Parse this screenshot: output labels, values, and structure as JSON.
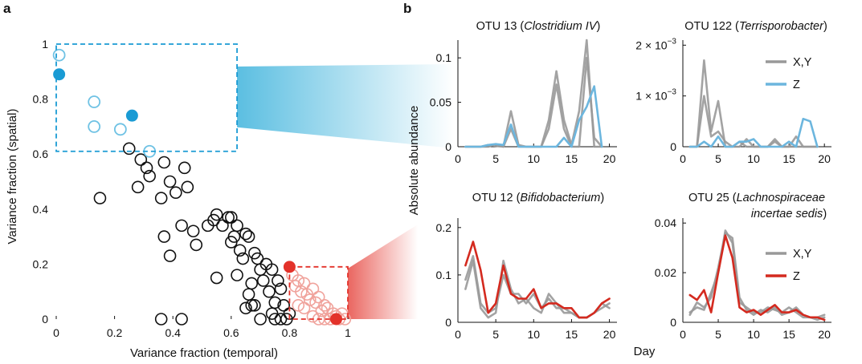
{
  "panel_labels": {
    "a": "a",
    "b": "b"
  },
  "colors": {
    "black": "#111111",
    "blue": "#1a9bd4",
    "blue_light": "#6fc2e4",
    "red": "#e3322a",
    "red_light": "#f0a39c",
    "gray": "#999999",
    "blue_line": "#6cb6de",
    "red_line": "#d42a1f"
  },
  "chart_data": [
    {
      "type": "scatter",
      "xlabel": "Variance fraction (temporal)",
      "ylabel": "Variance fraction (spatial)",
      "xlim": [
        0,
        1.0
      ],
      "ylim": [
        0,
        1.0
      ],
      "xticks": [
        "0",
        "0.2",
        "0.4",
        "0.6",
        "0.8",
        "1"
      ],
      "yticks": [
        "0",
        "0.2",
        "0.4",
        "0.6",
        "0.8",
        "1"
      ],
      "black_points": [
        [
          0.15,
          0.44
        ],
        [
          0.25,
          0.62
        ],
        [
          0.29,
          0.58
        ],
        [
          0.31,
          0.55
        ],
        [
          0.32,
          0.52
        ],
        [
          0.28,
          0.48
        ],
        [
          0.37,
          0.57
        ],
        [
          0.39,
          0.5
        ],
        [
          0.41,
          0.46
        ],
        [
          0.36,
          0.44
        ],
        [
          0.44,
          0.55
        ],
        [
          0.45,
          0.48
        ],
        [
          0.43,
          0.34
        ],
        [
          0.37,
          0.3
        ],
        [
          0.39,
          0.23
        ],
        [
          0.47,
          0.32
        ],
        [
          0.48,
          0.27
        ],
        [
          0.52,
          0.34
        ],
        [
          0.54,
          0.36
        ],
        [
          0.55,
          0.38
        ],
        [
          0.57,
          0.34
        ],
        [
          0.59,
          0.37
        ],
        [
          0.6,
          0.37
        ],
        [
          0.61,
          0.3
        ],
        [
          0.6,
          0.28
        ],
        [
          0.62,
          0.34
        ],
        [
          0.63,
          0.25
        ],
        [
          0.65,
          0.31
        ],
        [
          0.66,
          0.3
        ],
        [
          0.64,
          0.22
        ],
        [
          0.62,
          0.16
        ],
        [
          0.68,
          0.24
        ],
        [
          0.69,
          0.22
        ],
        [
          0.7,
          0.18
        ],
        [
          0.67,
          0.13
        ],
        [
          0.66,
          0.09
        ],
        [
          0.71,
          0.14
        ],
        [
          0.72,
          0.2
        ],
        [
          0.74,
          0.18
        ],
        [
          0.76,
          0.14
        ],
        [
          0.77,
          0.11
        ],
        [
          0.73,
          0.1
        ],
        [
          0.75,
          0.06
        ],
        [
          0.78,
          0.05
        ],
        [
          0.8,
          0.02
        ],
        [
          0.74,
          0.02
        ],
        [
          0.77,
          0.0
        ],
        [
          0.79,
          0.0
        ],
        [
          0.7,
          0.0
        ],
        [
          0.65,
          0.04
        ],
        [
          0.68,
          0.05
        ],
        [
          0.55,
          0.15
        ],
        [
          0.75,
          0.0
        ],
        [
          0.36,
          0.0
        ],
        [
          0.43,
          0.0
        ],
        [
          0.67,
          0.05
        ]
      ],
      "blue_open_points": [
        [
          0.01,
          0.96
        ],
        [
          0.13,
          0.79
        ],
        [
          0.13,
          0.7
        ],
        [
          0.22,
          0.69
        ],
        [
          0.32,
          0.61
        ]
      ],
      "blue_filled_points": [
        [
          0.01,
          0.89
        ],
        [
          0.26,
          0.74
        ]
      ],
      "red_open_points": [
        [
          0.81,
          0.16
        ],
        [
          0.83,
          0.14
        ],
        [
          0.82,
          0.12
        ],
        [
          0.85,
          0.13
        ],
        [
          0.84,
          0.1
        ],
        [
          0.86,
          0.09
        ],
        [
          0.88,
          0.11
        ],
        [
          0.87,
          0.07
        ],
        [
          0.89,
          0.06
        ],
        [
          0.9,
          0.08
        ],
        [
          0.92,
          0.05
        ],
        [
          0.91,
          0.03
        ],
        [
          0.93,
          0.04
        ],
        [
          0.95,
          0.02
        ],
        [
          0.94,
          0.0
        ],
        [
          0.96,
          0.01
        ],
        [
          0.98,
          0.02
        ],
        [
          0.97,
          0.0
        ],
        [
          0.85,
          0.04
        ],
        [
          0.88,
          0.01
        ],
        [
          0.9,
          0.0
        ],
        [
          0.83,
          0.05
        ],
        [
          0.99,
          0.0
        ],
        [
          0.92,
          0.0
        ]
      ],
      "red_filled_points": [
        [
          0.8,
          0.19
        ],
        [
          0.96,
          0.0
        ]
      ],
      "highlight_boxes": [
        {
          "color": "blue",
          "x0": 0.0,
          "x1": 0.62,
          "y0": 0.61,
          "y1": 1.0
        },
        {
          "color": "red",
          "x0": 0.8,
          "x1": 1.0,
          "y0": 0.0,
          "y1": 0.19
        }
      ]
    },
    {
      "type": "line",
      "title_prefix": "OTU 13 (",
      "title_italic": "Clostridium IV",
      "title_suffix": ")",
      "ylabel": "",
      "xlim": [
        0,
        21
      ],
      "ylim": [
        0,
        0.12
      ],
      "yticks": [
        {
          "v": 0,
          "label": "0"
        },
        {
          "v": 0.05,
          "label": "0.05"
        },
        {
          "v": 0.1,
          "label": "0.1"
        }
      ],
      "xticks": [
        "0",
        "5",
        "10",
        "15",
        "20"
      ],
      "series": [
        {
          "colorKey": "gray",
          "x": [
            1,
            2,
            3,
            4,
            5,
            6,
            7,
            8,
            9,
            10,
            11,
            12,
            13,
            14,
            15,
            16,
            17,
            18,
            19
          ],
          "y": [
            0,
            0,
            0,
            0,
            0.003,
            0,
            0.02,
            0,
            0,
            0,
            0,
            0.02,
            0.07,
            0.02,
            0,
            0,
            0.1,
            0.01,
            0
          ]
        },
        {
          "colorKey": "gray",
          "x": [
            1,
            2,
            3,
            4,
            5,
            6,
            7,
            8,
            9,
            10,
            11,
            12,
            13,
            14,
            15,
            16,
            17,
            18,
            19
          ],
          "y": [
            0,
            0,
            0,
            0.002,
            0.001,
            0,
            0.04,
            0.002,
            0,
            0,
            0,
            0.03,
            0.085,
            0.03,
            0.002,
            0.04,
            0.12,
            0,
            0
          ]
        },
        {
          "colorKey": "blue_line",
          "x": [
            1,
            2,
            3,
            4,
            5,
            6,
            7,
            8,
            9,
            10,
            11,
            12,
            13,
            14,
            15,
            16,
            17,
            18,
            19
          ],
          "y": [
            0,
            0,
            0,
            0.002,
            0.003,
            0.002,
            0.025,
            0,
            0,
            0,
            0,
            0,
            0,
            0.01,
            0,
            0.03,
            0.045,
            0.068,
            0
          ]
        }
      ]
    },
    {
      "type": "line",
      "title_prefix": "OTU 122 (",
      "title_italic": "Terrisporobacter",
      "title_suffix": ")",
      "ylabel": "",
      "xlim": [
        0,
        21
      ],
      "ylim": [
        0,
        0.0021
      ],
      "yticks": [
        {
          "v": 0,
          "label": "0"
        },
        {
          "v": 0.001,
          "label": "1 × 10",
          "exp": "−3"
        },
        {
          "v": 0.002,
          "label": "2 × 10",
          "exp": "−3"
        }
      ],
      "xticks": [
        "0",
        "5",
        "10",
        "15",
        "20"
      ],
      "series": [
        {
          "colorKey": "gray",
          "x": [
            1,
            2,
            3,
            4,
            5,
            6,
            7,
            8,
            9,
            10,
            11,
            12,
            13,
            14,
            15,
            16,
            17,
            18,
            19
          ],
          "y": [
            0,
            0,
            0.0017,
            0.0003,
            0.0009,
            0,
            0,
            0.0001,
            0,
            0,
            0,
            0,
            0.00015,
            0,
            0,
            0.0002,
            0,
            0,
            0
          ]
        },
        {
          "colorKey": "gray",
          "x": [
            1,
            2,
            3,
            4,
            5,
            6,
            7,
            8,
            9,
            10,
            11,
            12,
            13,
            14,
            15,
            16,
            17,
            18,
            19
          ],
          "y": [
            0,
            0,
            0.001,
            0.0002,
            0.0003,
            0.0001,
            0,
            0,
            0.00015,
            0,
            0,
            0,
            0.0001,
            0,
            0,
            0,
            0,
            0,
            0
          ]
        },
        {
          "colorKey": "blue_line",
          "x": [
            1,
            2,
            3,
            4,
            5,
            6,
            7,
            8,
            9,
            10,
            11,
            12,
            13,
            14,
            15,
            16,
            17,
            18,
            19
          ],
          "y": [
            0,
            0,
            0.0001,
            0,
            0.0002,
            0,
            0,
            0.0001,
            0.0001,
            0.00015,
            0,
            0,
            0,
            0,
            0.0001,
            0,
            0.00055,
            0.0005,
            0
          ]
        }
      ],
      "legend": [
        {
          "label": "X,Y",
          "colorKey": "gray"
        },
        {
          "label": "Z",
          "colorKey": "blue_line"
        }
      ]
    },
    {
      "type": "line",
      "title_prefix": "OTU 12 (",
      "title_italic": "Bifidobacterium",
      "title_suffix": ")",
      "ylabel": "",
      "xlim": [
        0,
        21
      ],
      "ylim": [
        0,
        0.22
      ],
      "yticks": [
        {
          "v": 0,
          "label": "0"
        },
        {
          "v": 0.1,
          "label": "0.1"
        },
        {
          "v": 0.2,
          "label": "0.2"
        }
      ],
      "xticks": [
        "0",
        "5",
        "10",
        "15",
        "20"
      ],
      "series": [
        {
          "colorKey": "gray",
          "x": [
            1,
            2,
            3,
            4,
            5,
            6,
            7,
            8,
            9,
            10,
            11,
            12,
            13,
            14,
            15,
            16,
            17,
            18,
            19,
            20
          ],
          "y": [
            0.07,
            0.13,
            0.03,
            0.01,
            0.02,
            0.13,
            0.07,
            0.04,
            0.05,
            0.03,
            0.02,
            0.06,
            0.04,
            0.02,
            0.02,
            0.01,
            0.01,
            0.02,
            0.03,
            0.04
          ]
        },
        {
          "colorKey": "gray",
          "x": [
            1,
            2,
            3,
            4,
            5,
            6,
            7,
            8,
            9,
            10,
            11,
            12,
            13,
            14,
            15,
            16,
            17,
            18,
            19,
            20
          ],
          "y": [
            0.09,
            0.14,
            0.04,
            0.02,
            0.03,
            0.1,
            0.06,
            0.06,
            0.04,
            0.06,
            0.03,
            0.05,
            0.03,
            0.03,
            0.02,
            0.01,
            0.01,
            0.02,
            0.04,
            0.03
          ]
        },
        {
          "colorKey": "red_line",
          "x": [
            1,
            2,
            3,
            4,
            5,
            6,
            7,
            8,
            9,
            10,
            11,
            12,
            13,
            14,
            15,
            16,
            17,
            18,
            19,
            20
          ],
          "y": [
            0.12,
            0.17,
            0.11,
            0.02,
            0.04,
            0.12,
            0.06,
            0.05,
            0.05,
            0.07,
            0.03,
            0.04,
            0.04,
            0.03,
            0.03,
            0.01,
            0.01,
            0.02,
            0.04,
            0.05
          ]
        }
      ]
    },
    {
      "type": "line",
      "title_prefix": "OTU 25 (",
      "title_italic": "Lachnospiraceae",
      "title_line2_italic": "incertae sedis",
      "title_suffix": ")",
      "ylabel": "",
      "xlim": [
        0,
        21
      ],
      "ylim": [
        0,
        0.042
      ],
      "yticks": [
        {
          "v": 0,
          "label": "0"
        },
        {
          "v": 0.02,
          "label": "0.02"
        },
        {
          "v": 0.04,
          "label": "0.04"
        }
      ],
      "xticks": [
        "0",
        "5",
        "10",
        "15",
        "20"
      ],
      "series": [
        {
          "colorKey": "gray",
          "x": [
            1,
            2,
            3,
            4,
            5,
            6,
            7,
            8,
            9,
            10,
            11,
            12,
            13,
            14,
            15,
            16,
            17,
            18,
            19,
            20
          ],
          "y": [
            0.004,
            0.006,
            0.005,
            0.012,
            0.02,
            0.037,
            0.032,
            0.008,
            0.006,
            0.004,
            0.004,
            0.006,
            0.005,
            0.004,
            0.006,
            0.004,
            0.002,
            0.002,
            0.002,
            0.003
          ]
        },
        {
          "colorKey": "gray",
          "x": [
            1,
            2,
            3,
            4,
            5,
            6,
            7,
            8,
            9,
            10,
            11,
            12,
            13,
            14,
            15,
            16,
            17,
            18,
            19,
            20
          ],
          "y": [
            0.003,
            0.008,
            0.006,
            0.01,
            0.022,
            0.036,
            0.034,
            0.01,
            0.005,
            0.003,
            0.005,
            0.004,
            0.006,
            0.003,
            0.004,
            0.006,
            0.003,
            0.002,
            0.001,
            0.002
          ]
        },
        {
          "colorKey": "red_line",
          "x": [
            1,
            2,
            3,
            4,
            5,
            6,
            7,
            8,
            9,
            10,
            11,
            12,
            13,
            14,
            15,
            16,
            17,
            18,
            19,
            20
          ],
          "y": [
            0.011,
            0.009,
            0.013,
            0.004,
            0.02,
            0.035,
            0.026,
            0.006,
            0.004,
            0.005,
            0.003,
            0.005,
            0.007,
            0.004,
            0.004,
            0.005,
            0.003,
            0.002,
            0.002,
            0.001
          ]
        }
      ],
      "legend": [
        {
          "label": "X,Y",
          "colorKey": "gray"
        },
        {
          "label": "Z",
          "colorKey": "red_line"
        }
      ]
    }
  ],
  "shared_labels": {
    "abundance": "Absolute abundance",
    "day": "Day"
  }
}
